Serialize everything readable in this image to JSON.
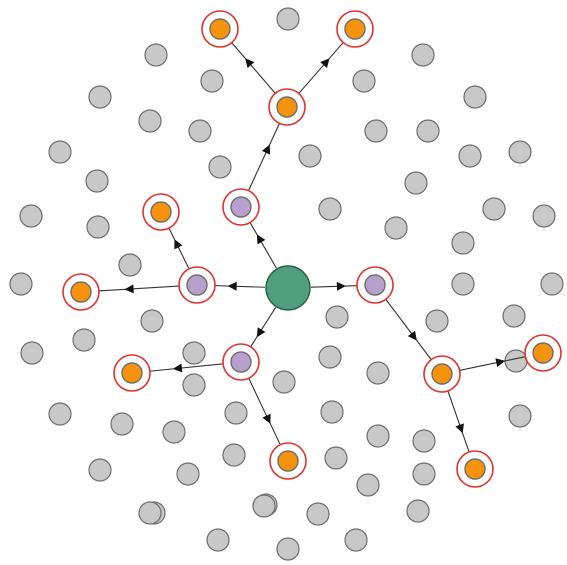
{
  "graph": {
    "colors": {
      "background": "#ffffff",
      "inactive_fill": "#c8c8c8",
      "inactive_stroke": "#6e6e6e",
      "center_fill": "#4f9e7c",
      "center_stroke": "#2e5e4c",
      "level1_fill": "#b79fce",
      "level1_stroke": "#6e6e6e",
      "level2_fill": "#f5930f",
      "level2_stroke": "#6e6e6e",
      "ring": "#e0332e",
      "edge": "#333333"
    },
    "center_node": {
      "id": "C",
      "level": 0
    },
    "level1_nodes": [
      {
        "id": "P1",
        "level": 1
      },
      {
        "id": "P2",
        "level": 1
      },
      {
        "id": "P3",
        "level": 1
      },
      {
        "id": "P4",
        "level": 1
      }
    ],
    "level2_nodes": [
      {
        "id": "O1",
        "level": 2
      },
      {
        "id": "O2",
        "level": 2
      },
      {
        "id": "O3",
        "level": 2
      },
      {
        "id": "O4",
        "level": 2
      },
      {
        "id": "O5",
        "level": 2
      },
      {
        "id": "O6",
        "level": 2
      },
      {
        "id": "O7",
        "level": 2
      },
      {
        "id": "O8",
        "level": 2
      }
    ],
    "level3_nodes": [
      {
        "id": "R1",
        "level": 3
      },
      {
        "id": "R2",
        "level": 3
      },
      {
        "id": "R3",
        "level": 3
      },
      {
        "id": "R4",
        "level": 3
      }
    ],
    "edges": [
      {
        "from": "C",
        "to": "P1"
      },
      {
        "from": "C",
        "to": "P2"
      },
      {
        "from": "C",
        "to": "P3"
      },
      {
        "from": "C",
        "to": "P4"
      },
      {
        "from": "P1",
        "to": "O1"
      },
      {
        "from": "O1",
        "to": "R1"
      },
      {
        "from": "O1",
        "to": "R2"
      },
      {
        "from": "P2",
        "to": "O2"
      },
      {
        "from": "P2",
        "to": "O3"
      },
      {
        "from": "P3",
        "to": "O4"
      },
      {
        "from": "P3",
        "to": "O5"
      },
      {
        "from": "P4",
        "to": "O6"
      },
      {
        "from": "O6",
        "to": "R3"
      },
      {
        "from": "O6",
        "to": "R4"
      }
    ],
    "inactive_node_count": 72
  }
}
